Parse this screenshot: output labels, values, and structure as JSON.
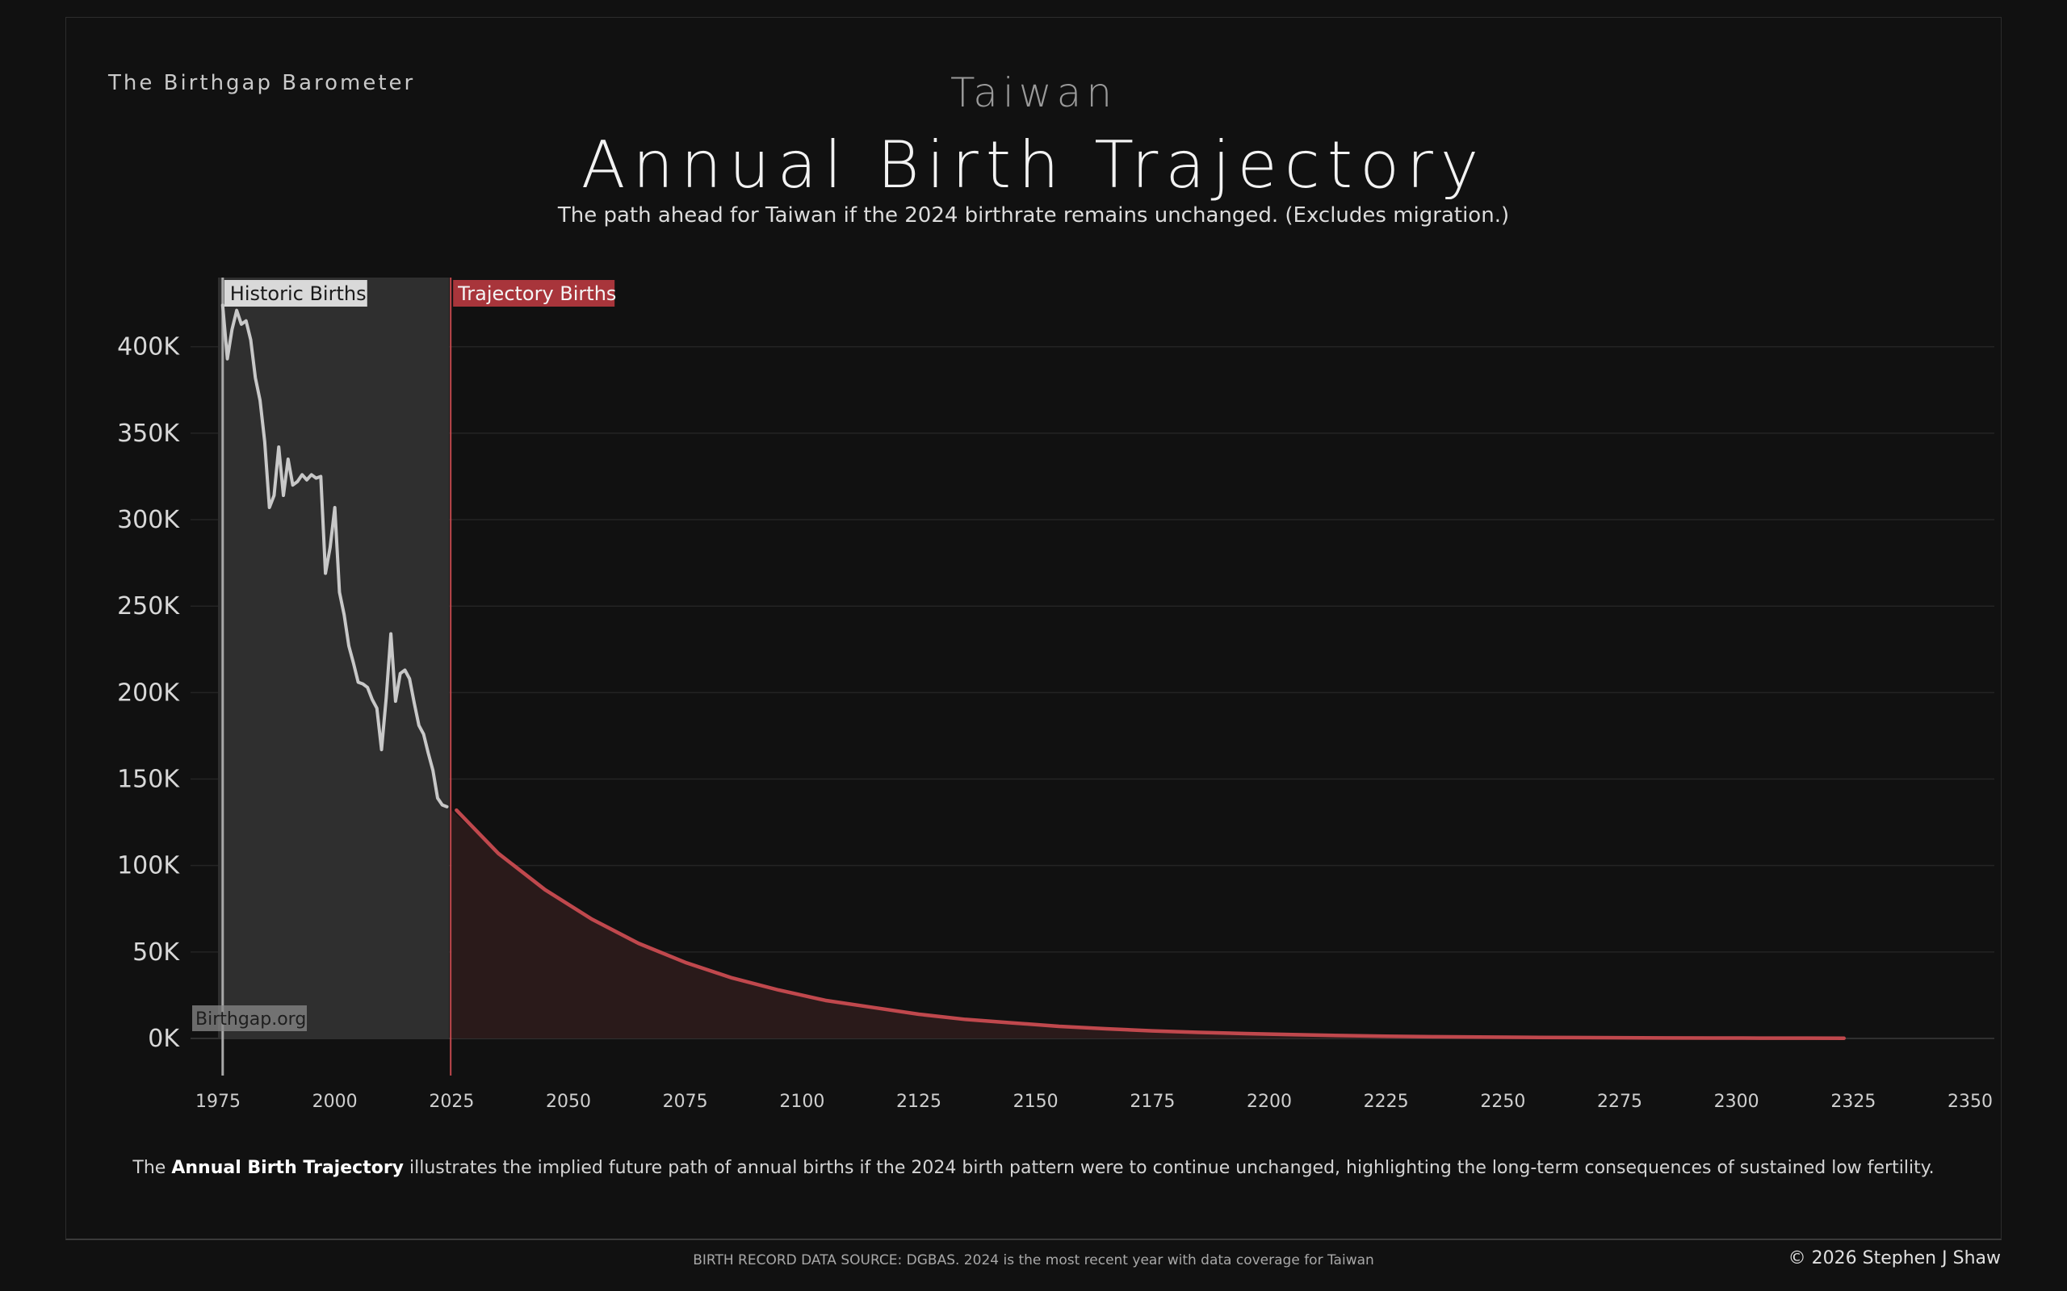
{
  "header": {
    "brand": "The Birthgap Barometer",
    "country": "Taiwan",
    "title": "Annual Birth Trajectory",
    "subtitle": "The path ahead for Taiwan if the 2024 birthrate remains unchanged.  (Excludes migration.)"
  },
  "footer": {
    "caption_before": "The ",
    "caption_bold": "Annual Birth Trajectory",
    "caption_after": " illustrates the implied future path of annual births if the 2024 birth pattern were to continue unchanged, highlighting the long-term consequences of sustained low fertility.",
    "source": "BIRTH RECORD DATA SOURCE: DGBAS. 2024 is the most recent year with data coverage for Taiwan",
    "copyright": "© 2026 Stephen J Shaw"
  },
  "chart_data": {
    "type": "area",
    "xlim": [
      1975,
      2350
    ],
    "ylim": [
      0,
      440000
    ],
    "x_ticks": [
      1975,
      2000,
      2025,
      2050,
      2075,
      2100,
      2125,
      2150,
      2175,
      2200,
      2225,
      2250,
      2275,
      2300,
      2325,
      2350
    ],
    "y_ticks": [
      0,
      50000,
      100000,
      150000,
      200000,
      250000,
      300000,
      350000,
      400000
    ],
    "y_tick_labels": [
      "0K",
      "50K",
      "100K",
      "150K",
      "200K",
      "250K",
      "300K",
      "350K",
      "400K"
    ],
    "grid": true,
    "annotations": {
      "historic_label": "Historic Births",
      "trajectory_label": "Trajectory Births",
      "watermark": "Birthgap.org"
    },
    "colors": {
      "historic_line": "#c8c8c8",
      "historic_fill": "#2f2f2f",
      "trajectory_line": "#c0484d",
      "trajectory_fill": "#2a1a1a",
      "historic_label_bg": "#d9d9d9",
      "trajectory_label_bg": "#a8353b"
    },
    "series": [
      {
        "name": "Historic Births",
        "x": [
          1976,
          1977,
          1978,
          1979,
          1980,
          1981,
          1982,
          1983,
          1984,
          1985,
          1986,
          1987,
          1988,
          1989,
          1990,
          1991,
          1992,
          1993,
          1994,
          1995,
          1996,
          1997,
          1998,
          1999,
          2000,
          2001,
          2002,
          2003,
          2004,
          2005,
          2006,
          2007,
          2008,
          2009,
          2010,
          2011,
          2012,
          2013,
          2014,
          2015,
          2016,
          2017,
          2018,
          2019,
          2020,
          2021,
          2022,
          2023,
          2024
        ],
        "values": [
          424000,
          393000,
          410000,
          421000,
          413000,
          415000,
          404000,
          382000,
          369000,
          345000,
          307000,
          314000,
          342000,
          314000,
          335000,
          320000,
          322000,
          326000,
          323000,
          326000,
          324000,
          325000,
          269000,
          284000,
          307000,
          258000,
          245000,
          227000,
          217000,
          206000,
          205000,
          203000,
          196000,
          191000,
          167000,
          197000,
          234000,
          195000,
          211000,
          213000,
          208000,
          194000,
          181000,
          176000,
          165000,
          155000,
          139000,
          135000,
          134000
        ]
      },
      {
        "name": "Trajectory Births",
        "x": [
          2025,
          2035,
          2045,
          2055,
          2065,
          2075,
          2085,
          2095,
          2105,
          2115,
          2125,
          2135,
          2145,
          2155,
          2165,
          2175,
          2185,
          2195,
          2205,
          2215,
          2225,
          2235,
          2245,
          2255,
          2265,
          2275,
          2285,
          2295,
          2305,
          2315,
          2323
        ],
        "values": [
          132000,
          107000,
          86000,
          69000,
          55000,
          44000,
          35000,
          28000,
          22000,
          18000,
          14000,
          11000,
          9000,
          7000,
          5600,
          4400,
          3500,
          2800,
          2200,
          1700,
          1300,
          1000,
          800,
          650,
          500,
          400,
          320,
          250,
          200,
          150,
          120
        ]
      }
    ]
  }
}
